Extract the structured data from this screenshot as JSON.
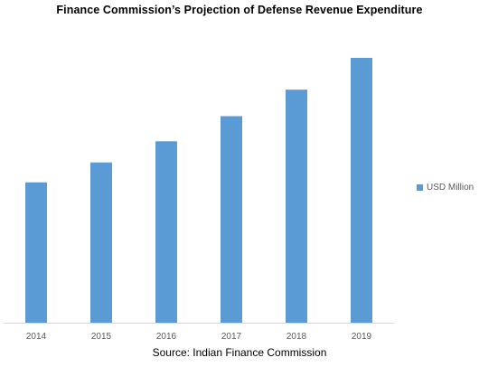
{
  "chart_data": {
    "type": "bar",
    "title": "Finance Commission’s Projection of Defense Revenue Expenditure",
    "categories": [
      "2014",
      "2015",
      "2016",
      "2017",
      "2018",
      "2019"
    ],
    "series": [
      {
        "name": "USD Million",
        "values": [
          0.53,
          0.605,
          0.685,
          0.78,
          0.88,
          1.0
        ],
        "color": "#5b9bd5"
      }
    ],
    "ylim": [
      0,
      1.0
    ],
    "y_axis_visible": false,
    "grid": false,
    "legend_position": "right",
    "source": "Source: Indian Finance Commission"
  }
}
